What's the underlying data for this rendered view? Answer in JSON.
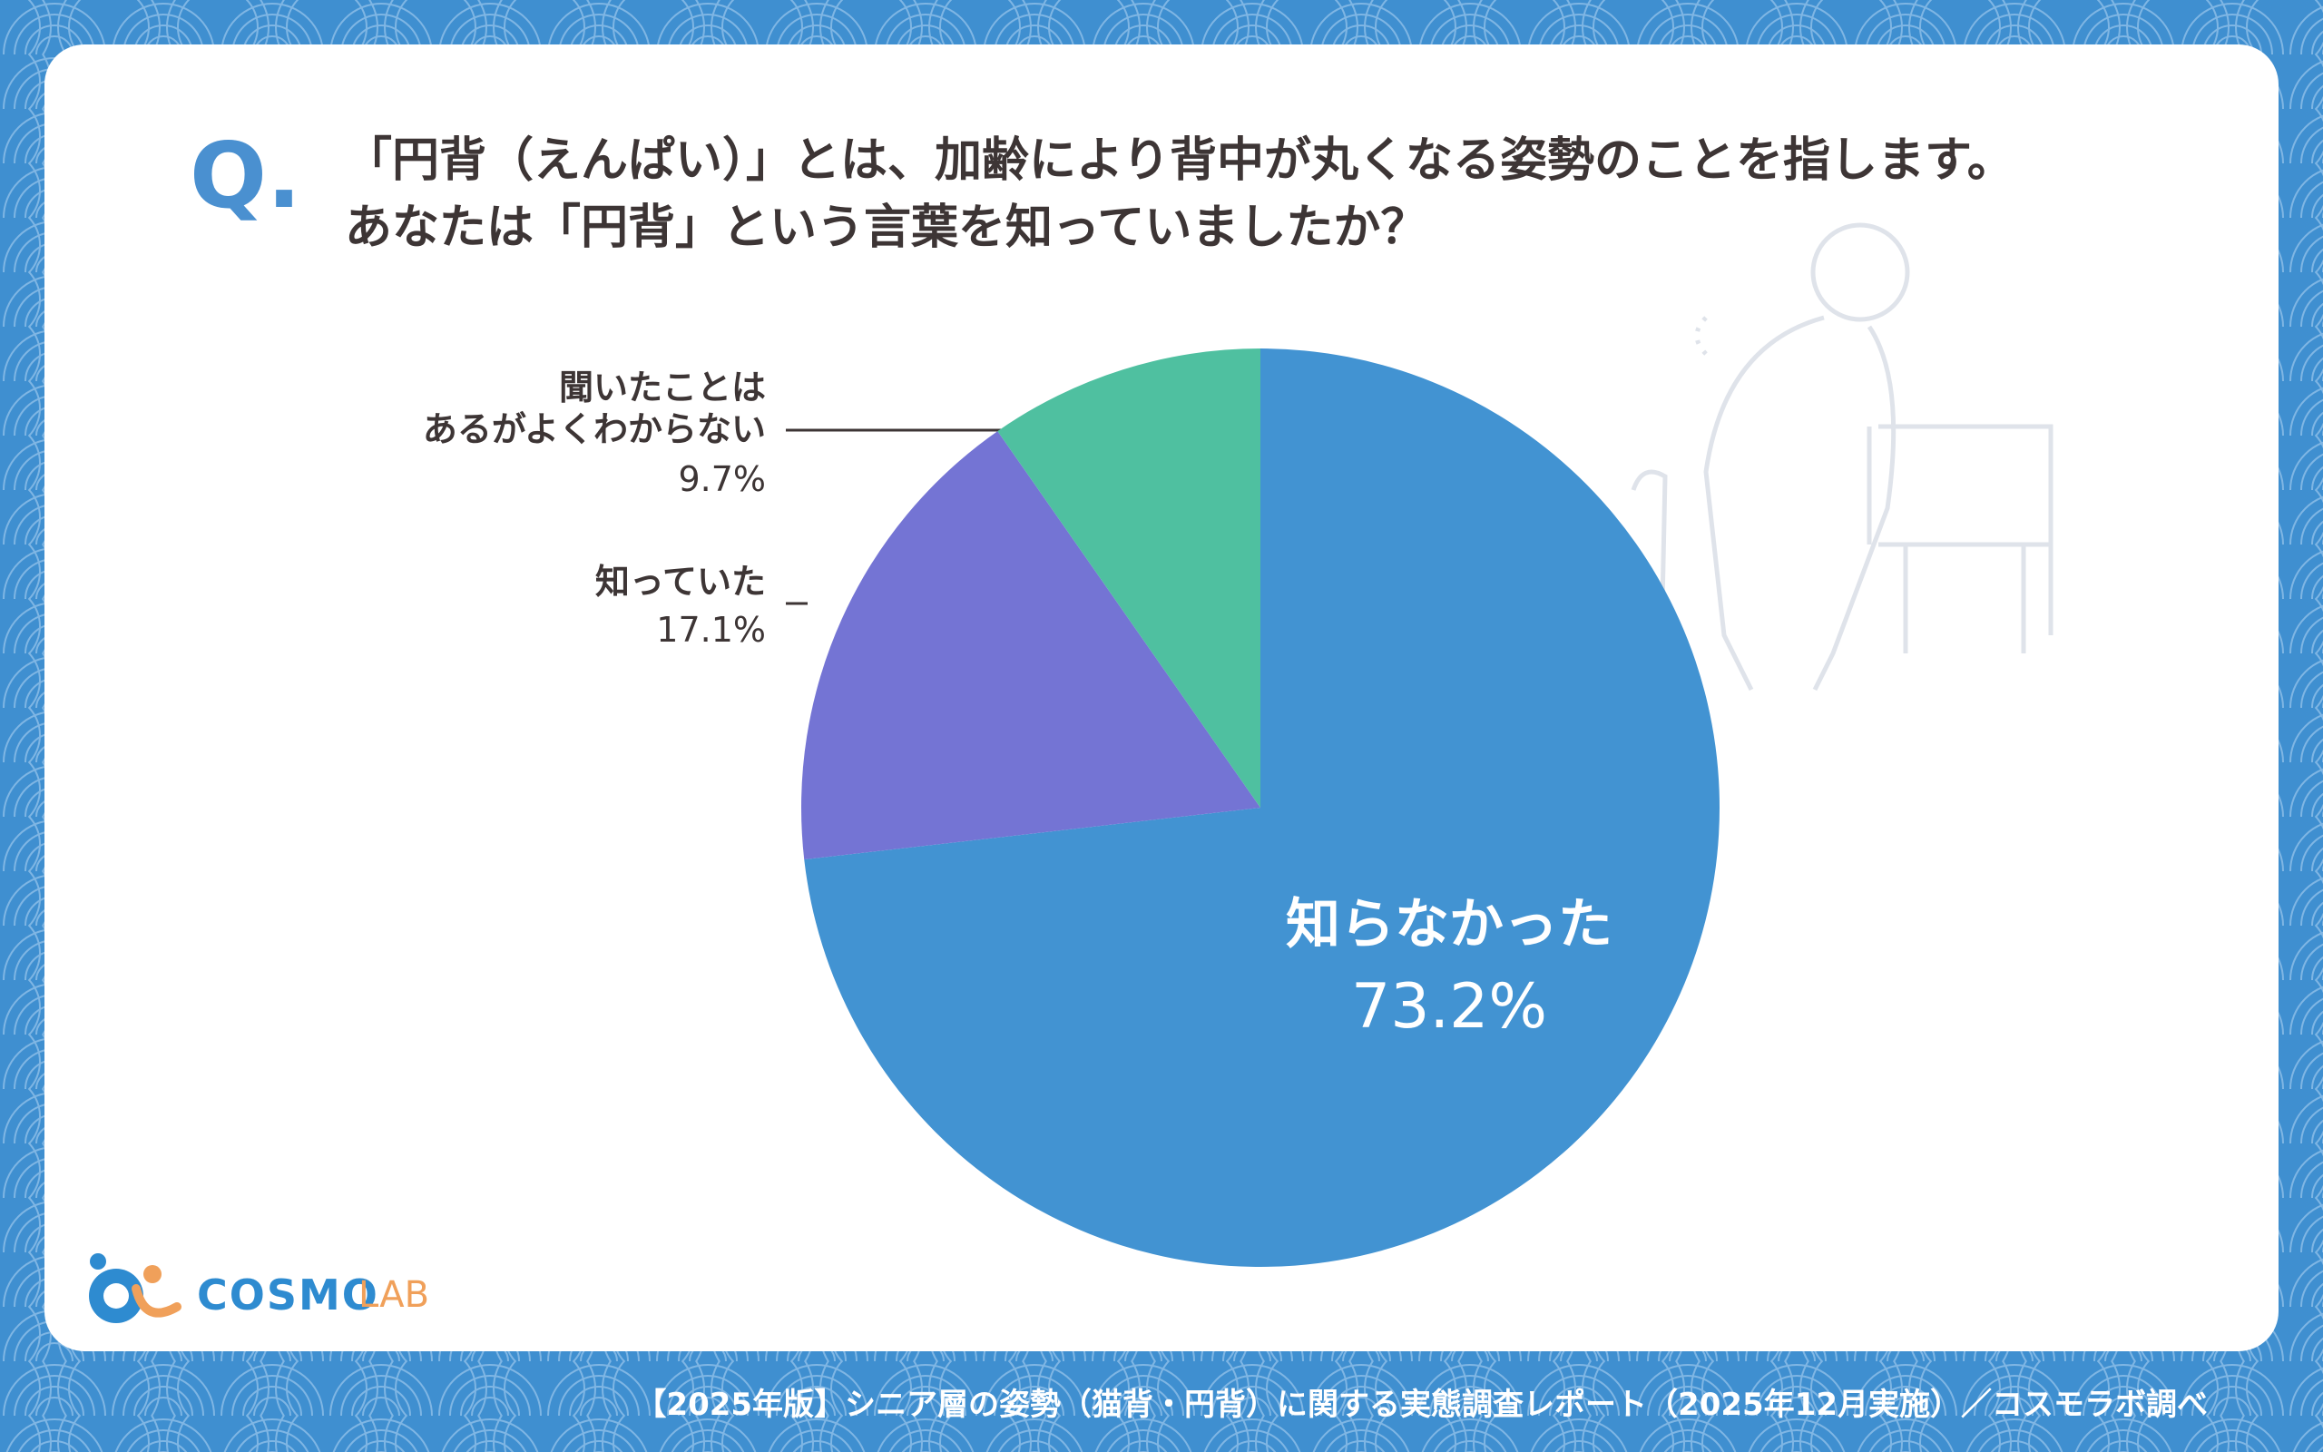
{
  "chart_data": {
    "type": "pie",
    "question_mark": "Q.",
    "title": "「円背（えんぱい）」とは、加齢により背中が丸くなる姿勢のことを指します。\nあなたは「円背」という言葉を知っていましたか？",
    "categories": [
      "知らなかった",
      "知っていた",
      "聞いたことは\nあるがよくわからない"
    ],
    "values": [
      73.2,
      17.1,
      9.7
    ],
    "value_labels": [
      "73.2%",
      "17.1%",
      "9.7%"
    ],
    "colors": [
      "#4293d2",
      "#7474d4",
      "#4fc0a0"
    ]
  },
  "footer": "【2025年版】シニア層の姿勢（猫背・円背）に関する実態調査レポート（2025年12月実施）／コスモラボ調べ",
  "logo": {
    "name": "COSMO",
    "suffix": "LAB"
  }
}
